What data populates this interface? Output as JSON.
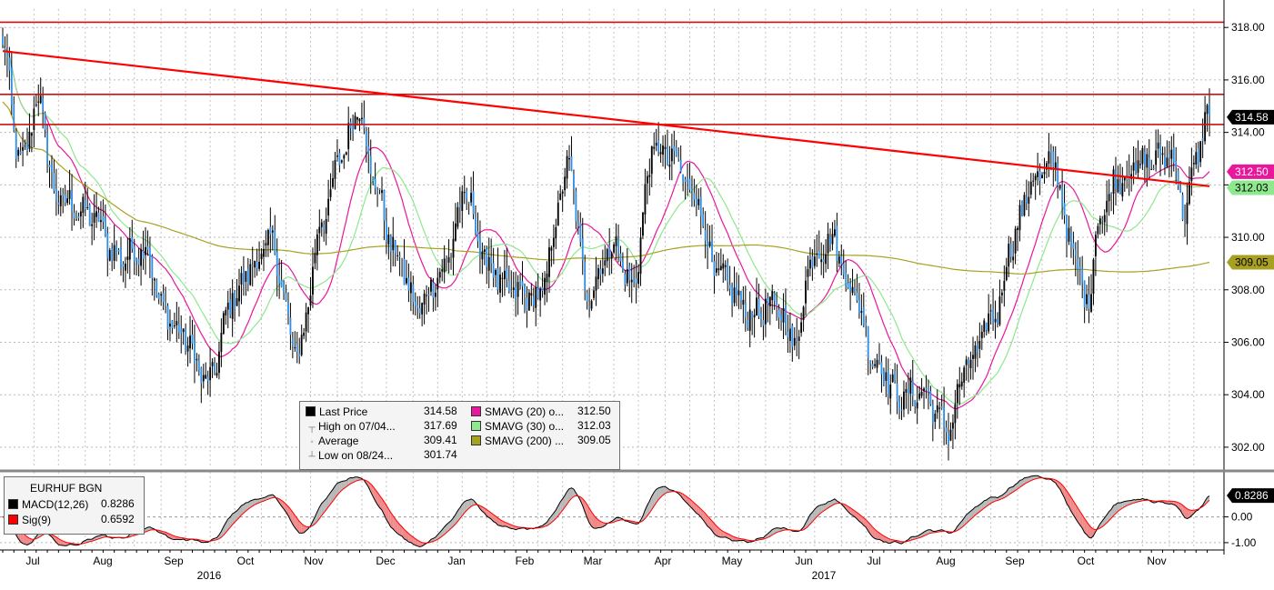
{
  "chart_data": [
    {
      "type": "candlestick",
      "ticker": "EURHUF BGN",
      "ylim": [
        301.2,
        318.7
      ],
      "yticks": [
        302,
        304,
        306,
        308,
        310,
        312,
        314,
        316,
        318
      ],
      "ytick_labels": [
        "302.00",
        "304.00",
        "306.00",
        "308.00",
        "310.00",
        "312.00",
        "314.00",
        "316.00",
        "318.00"
      ],
      "x_month_labels": [
        "Jul",
        "Aug",
        "Sep",
        "Oct",
        "Nov",
        "Dec",
        "Jan",
        "Feb",
        "Mar",
        "Apr",
        "May",
        "Jun",
        "Jul",
        "Aug",
        "Sep",
        "Oct",
        "Nov"
      ],
      "x_year_labels": [
        "2016",
        "2017"
      ],
      "grid": true,
      "series_anchors": {
        "close": [
          [
            0,
            317.2
          ],
          [
            8,
            312.8
          ],
          [
            16,
            315.2
          ],
          [
            24,
            311.5
          ],
          [
            40,
            310.8
          ],
          [
            52,
            309.2
          ],
          [
            64,
            309.6
          ],
          [
            72,
            307.2
          ],
          [
            80,
            306.3
          ],
          [
            92,
            304.5
          ],
          [
            104,
            307.8
          ],
          [
            112,
            308.9
          ],
          [
            120,
            309.8
          ],
          [
            132,
            305.6
          ],
          [
            144,
            310.8
          ],
          [
            152,
            313.2
          ],
          [
            160,
            315.0
          ],
          [
            166,
            312.2
          ],
          [
            176,
            309.4
          ],
          [
            186,
            307.3
          ],
          [
            196,
            308.6
          ],
          [
            208,
            311.6
          ],
          [
            216,
            309.2
          ],
          [
            226,
            308.0
          ],
          [
            240,
            307.7
          ],
          [
            254,
            312.6
          ],
          [
            262,
            307.9
          ],
          [
            274,
            309.7
          ],
          [
            282,
            308.1
          ],
          [
            292,
            313.4
          ],
          [
            300,
            313.0
          ],
          [
            310,
            311.7
          ],
          [
            320,
            308.6
          ],
          [
            336,
            307.1
          ],
          [
            346,
            307.4
          ],
          [
            356,
            306.0
          ],
          [
            362,
            309.2
          ],
          [
            372,
            309.9
          ],
          [
            380,
            308.1
          ],
          [
            392,
            305.2
          ],
          [
            402,
            303.9
          ],
          [
            412,
            304.1
          ],
          [
            424,
            302.7
          ],
          [
            432,
            305.1
          ],
          [
            446,
            307.2
          ],
          [
            452,
            309.8
          ],
          [
            462,
            312.2
          ],
          [
            472,
            312.8
          ],
          [
            478,
            309.9
          ],
          [
            486,
            307.6
          ],
          [
            492,
            310.8
          ],
          [
            500,
            312.3
          ],
          [
            514,
            312.9
          ],
          [
            524,
            313.2
          ],
          [
            530,
            311.0
          ],
          [
            536,
            313.3
          ],
          [
            540,
            314.58
          ]
        ],
        "high_low_range": 1.6
      },
      "series": [
        {
          "name": "SMAVG (20) o...",
          "value": 312.5,
          "color": "#e8179b",
          "period": 20
        },
        {
          "name": "SMAVG (30) o...",
          "value": 312.03,
          "color": "#8ee88e",
          "period": 30
        },
        {
          "name": "SMAVG (200) ...",
          "value": 309.05,
          "color": "#a8a020",
          "period": 200
        }
      ],
      "trend_lines": [
        {
          "from": [
            0,
            317.1
          ],
          "to": [
            541,
            311.95
          ],
          "color": "#ff0000"
        }
      ],
      "horizontal_lines": [
        {
          "y": 318.2,
          "color": "#cc1010"
        },
        {
          "y": 315.45,
          "color": "#cc1010"
        },
        {
          "y": 314.3,
          "color": "#cc1010"
        }
      ],
      "price_tags": [
        {
          "label": "314.58",
          "value": 314.58,
          "bg": "#000000",
          "fg": "#ffffff"
        },
        {
          "label": "312.50",
          "value": 312.5,
          "bg": "#e8179b",
          "fg": "#ffffff"
        },
        {
          "label": "312.03",
          "value": 312.03,
          "bg": "#8ee88e",
          "fg": "#000000"
        },
        {
          "label": "309.05",
          "value": 309.05,
          "bg": "#a8a020",
          "fg": "#000000"
        }
      ],
      "legend": {
        "rows": [
          {
            "glyph": "■",
            "label": "Last Price",
            "value": "314.58",
            "swatch": "#000000"
          },
          {
            "glyph": "┬",
            "label": "High on 07/04...",
            "value": "317.69",
            "swatch": null
          },
          {
            "glyph": "◦",
            "label": "Average",
            "value": "309.41",
            "swatch": null
          },
          {
            "glyph": "┴",
            "label": "Low on 08/24...",
            "value": "301.74",
            "swatch": null
          }
        ],
        "ma_rows": [
          {
            "label": "SMAVG (20) o...",
            "value": "312.50",
            "swatch": "#e8179b"
          },
          {
            "label": "SMAVG (30) o...",
            "value": "312.03",
            "swatch": "#8ee88e"
          },
          {
            "label": "SMAVG (200) ...",
            "value": "309.05",
            "swatch": "#a8a020"
          }
        ]
      }
    },
    {
      "type": "macd",
      "title": "EURHUF BGN",
      "ylim": [
        -1.25,
        1.75
      ],
      "yticks": [
        0,
        -1
      ],
      "ytick_labels": [
        "0.00",
        "-1.00"
      ],
      "series": [
        {
          "name": "MACD(12,26)",
          "value": "0.8286",
          "color": "#000000"
        },
        {
          "name": "Sig(9)",
          "value": "0.6592",
          "color": "#ff0000"
        }
      ],
      "price_tags": [
        {
          "label": "0.8286",
          "value": 0.8286,
          "bg": "#000000",
          "fg": "#ffffff"
        }
      ]
    }
  ]
}
